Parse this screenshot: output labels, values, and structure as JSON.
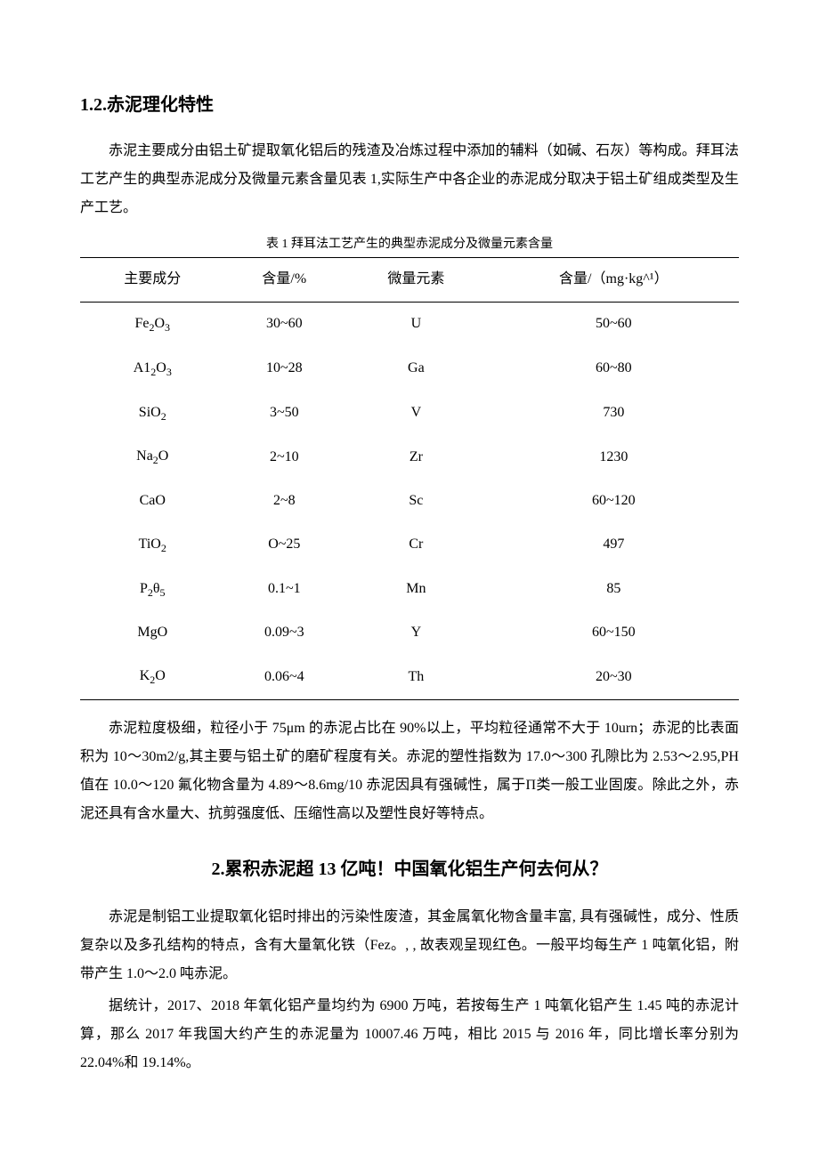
{
  "headings": {
    "h1": "1.2.赤泥理化特性",
    "h2": "2.累积赤泥超 13 亿吨！中国氧化铝生产何去何从？"
  },
  "paragraphs": {
    "p1": "赤泥主要成分由铝土矿提取氧化铝后的残渣及冶炼过程中添加的辅料（如碱、石灰）等构成。拜耳法工艺产生的典型赤泥成分及微量元素含量见表 1,实际生产中各企业的赤泥成分取决于铝土矿组成类型及生产工艺。",
    "p2": "赤泥粒度极细，粒径小于 75μm 的赤泥占比在 90%以上，平均粒径通常不大于 10urn；赤泥的比表面积为 10～30m2/g,其主要与铝土矿的磨矿程度有关。赤泥的塑性指数为 17.0～300 孔隙比为 2.53～2.95,PH 值在 10.0～120 氟化物含量为 4.89～8.6mg/10 赤泥因具有强碱性，属于Π类一般工业固废。除此之外，赤泥还具有含水量大、抗剪强度低、压缩性高以及塑性良好等特点。",
    "p3": "赤泥是制铝工业提取氧化铝时排出的污染性废渣，其金属氧化物含量丰富, 具有强碱性，成分、性质复杂以及多孔结构的特点，含有大量氧化铁（Fez。, , 故表观呈现红色。一般平均每生产 1 吨氧化铝，附带产生 1.0～2.0 吨赤泥。",
    "p4": "据统计，2017、2018 年氧化铝产量均约为 6900 万吨，若按每生产 1 吨氧化铝产生 1.45 吨的赤泥计算，那么 2017 年我国大约产生的赤泥量为 10007.46 万吨，相比 2015 与 2016 年，同比增长率分别为 22.04%和 19.14%。"
  },
  "table": {
    "caption": "表 1 拜耳法工艺产生的典型赤泥成分及微量元素含量",
    "headers": [
      "主要成分",
      "含量/%",
      "微量元素",
      "含量/（mg·kg^¹）"
    ],
    "rows": [
      {
        "c1_html": "Fe<span class='sub'>2</span>O<span class='sub'>3</span>",
        "c2": "30~60",
        "c3": "U",
        "c4": "50~60"
      },
      {
        "c1_html": "A1<span class='sub'>2</span>O<span class='sub'>3</span>",
        "c2": "10~28",
        "c3": "Ga",
        "c4": "60~80"
      },
      {
        "c1_html": "SiO<span class='sub'>2</span>",
        "c2": "3~50",
        "c3": "V",
        "c4": "730"
      },
      {
        "c1_html": "Na<span class='sub'>2</span>O",
        "c2": "2~10",
        "c3": "Zr",
        "c4": "1230"
      },
      {
        "c1_html": "CaO",
        "c2": "2~8",
        "c3": "Sc",
        "c4": "60~120"
      },
      {
        "c1_html": "TiO<span class='sub'>2</span>",
        "c2": "O~25",
        "c3": "Cr",
        "c4": "497"
      },
      {
        "c1_html": "P<span class='sub'>2</span>θ<span class='sub'>5</span>",
        "c2": "0.1~1",
        "c3": "Mn",
        "c4": "85"
      },
      {
        "c1_html": "MgO",
        "c2": "0.09~3",
        "c3": "Y",
        "c4": "60~150"
      },
      {
        "c1_html": "K<span class='sub'>2</span>O",
        "c2": "0.06~4",
        "c3": "Th",
        "c4": "20~30"
      }
    ]
  },
  "styles": {
    "body_bg": "#ffffff",
    "text_color": "#000000",
    "border_color": "#000000",
    "heading_fontsize": 20,
    "body_fontsize": 16,
    "caption_fontsize": 14
  }
}
